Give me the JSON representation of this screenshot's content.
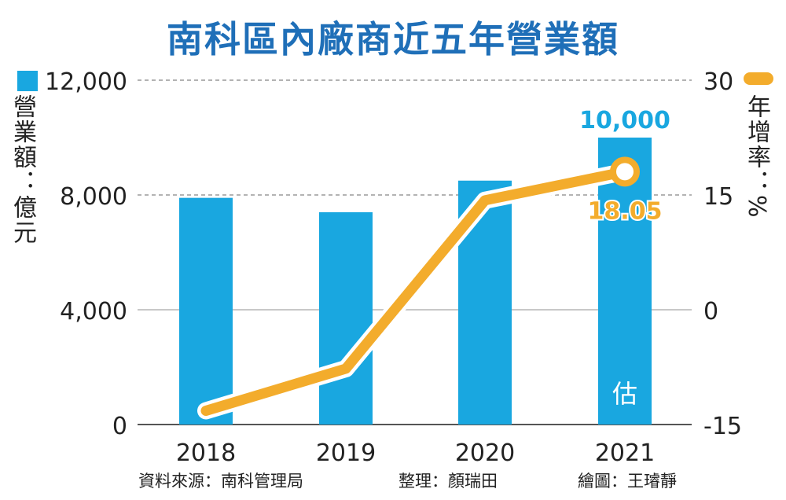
{
  "title": "南科區內廠商近五年營業額",
  "left_axis_label": "營業額：億元",
  "right_axis_label": "年增率：%",
  "colors": {
    "bar": "#19a7e0",
    "line": "#f3ac2c",
    "title": "#1f6fb8"
  },
  "credits": {
    "source": "資料來源：南科管理局",
    "editor": "整理：顏瑞田",
    "illustrator": "繪圖：王璿靜"
  },
  "chart_data": {
    "type": "bar+line",
    "categories": [
      "2018",
      "2019",
      "2020",
      "2021"
    ],
    "series": [
      {
        "values": [
          7900,
          7400,
          8500,
          10000
        ],
        "axis": "left",
        "type": "bar"
      },
      {
        "values": [
          -13.2,
          -7.7,
          14.3,
          18.05
        ],
        "axis": "right",
        "type": "line"
      }
    ],
    "left_axis": {
      "ticks": [
        "0",
        "4,000",
        "8,000",
        "12,000"
      ],
      "range": [
        0,
        12000
      ]
    },
    "right_axis": {
      "ticks": [
        "-15",
        "0",
        "15",
        "30"
      ],
      "range": [
        -15,
        30
      ]
    },
    "data_labels": {
      "bar_2021": "10,000",
      "line_2021": "18.05"
    },
    "annotation_2021": "估",
    "grid": true
  }
}
